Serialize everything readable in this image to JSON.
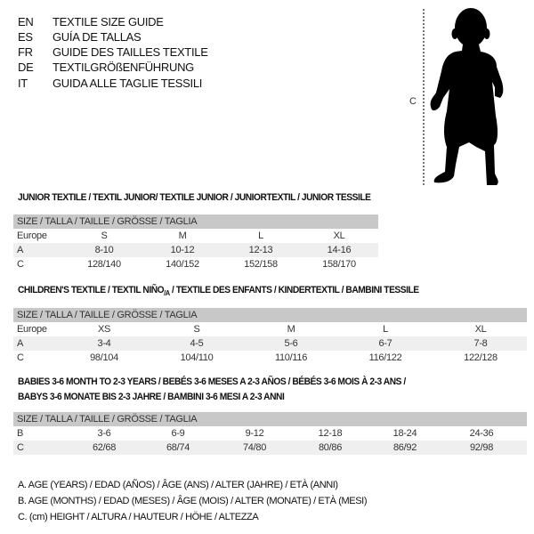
{
  "languages": [
    {
      "code": "EN",
      "text": "TEXTILE SIZE GUIDE"
    },
    {
      "code": "ES",
      "text": "GUÍA DE TALLAS"
    },
    {
      "code": "FR",
      "text": "GUIDE DES TAILLES TEXTILE"
    },
    {
      "code": "DE",
      "text": "TEXTILGRÖßENFÜHRUNG"
    },
    {
      "code": "IT",
      "text": "GUIDA ALLE TAGLIE TESSILI"
    }
  ],
  "figure": {
    "measure_label": "C",
    "icon": "child-silhouette"
  },
  "junior": {
    "title": "JUNIOR TEXTILE / TEXTIL JUNIOR/ TEXTILE JUNIOR / JUNIORTEXTIL / JUNIOR TESSILE",
    "header": "SIZE / TALLA / TAILLE / GRÖSSE / TAGLIA",
    "rows": [
      {
        "label": "Europe",
        "values": [
          "S",
          "M",
          "L",
          "XL"
        ]
      },
      {
        "label": "A",
        "values": [
          "8-10",
          "10-12",
          "12-13",
          "14-16"
        ]
      },
      {
        "label": "C",
        "values": [
          "128/140",
          "140/152",
          "152/158",
          "158/170"
        ]
      }
    ]
  },
  "children": {
    "title_main": "CHILDREN'S TEXTILE / TEXTIL NIÑO",
    "title_sub": "/A",
    "title_rest": " / TEXTILE DES ENFANTS / KINDERTEXTIL / BAMBINI TESSILE",
    "header": "SIZE / TALLA / TAILLE / GRÖSSE / TAGLIA",
    "rows": [
      {
        "label": "Europe",
        "values": [
          "XS",
          "S",
          "M",
          "L",
          "XL"
        ]
      },
      {
        "label": "A",
        "values": [
          "3-4",
          "4-5",
          "5-6",
          "6-7",
          "7-8"
        ]
      },
      {
        "label": "C",
        "values": [
          "98/104",
          "104/110",
          "110/116",
          "116/122",
          "122/128"
        ]
      }
    ]
  },
  "babies": {
    "title_line1": "BABIES 3-6 MONTH TO 2-3 YEARS / BEBÉS 3-6 MESES A 2-3 AÑOS / BÉBÉS 3-6 MOIS À 2-3 ANS /",
    "title_line2": "BABYS 3-6 MONATE BIS 2-3 JAHRE / BAMBINI 3-6 MESI A 2-3 ANNI",
    "header": "SIZE / TALLA / TAILLE / GRÖSSE / TAGLIA",
    "rows": [
      {
        "label": "B",
        "values": [
          "3-6",
          "6-9",
          "9-12",
          "12-18",
          "18-24",
          "24-36"
        ]
      },
      {
        "label": "C",
        "values": [
          "62/68",
          "68/74",
          "74/80",
          "80/86",
          "86/92",
          "92/98"
        ]
      }
    ]
  },
  "legend": [
    "A. AGE (YEARS) / EDAD (AÑOS) / ÂGE (ANS) / ALTER (JAHRE) / ETÀ (ANNI)",
    "B. AGE (MONTHS) / EDAD (MESES) / ÂGE (MOIS) / ALTER (MONATE) / ETÀ (MESI)",
    "C. (cm) HEIGHT / ALTURA / HAUTEUR / HÖHE / ALTEZZA"
  ]
}
